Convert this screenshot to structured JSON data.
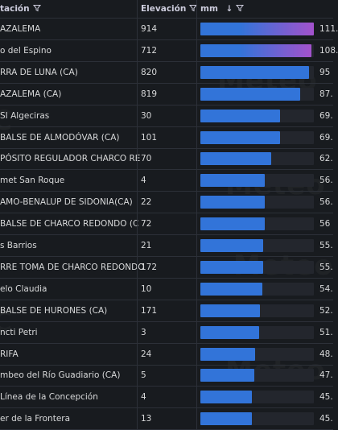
{
  "columns": {
    "station": "tación",
    "elevation": "Elevación",
    "mm": "mm",
    "sort": "↓"
  },
  "bar_scale_max": 111,
  "colors": {
    "bar": "#3274d9",
    "gradient_end": "#a352cc"
  },
  "rows": [
    {
      "station": "AZALEMA",
      "elevation": "914",
      "value": "111.",
      "fraction": 1.0
    },
    {
      "station": "o del Espino",
      "elevation": "712",
      "value": "108.",
      "fraction": 0.98
    },
    {
      "station": "RRA DE LUNA (CA)",
      "elevation": "820",
      "value": "95",
      "fraction": 0.955
    },
    {
      "station": "AZALEMA (CA)",
      "elevation": "819",
      "value": "87.",
      "fraction": 0.88
    },
    {
      "station": "SI Algeciras",
      "elevation": "30",
      "value": "69.",
      "fraction": 0.7
    },
    {
      "station": "BALSE DE ALMODÓVAR (CA)",
      "elevation": "101",
      "value": "69.",
      "fraction": 0.7
    },
    {
      "station": "PÓSITO REGULADOR CHARCO RE",
      "elevation": "70",
      "value": "62.",
      "fraction": 0.625
    },
    {
      "station": "met San Roque",
      "elevation": "4",
      "value": "56.",
      "fraction": 0.565
    },
    {
      "station": "AMO-BENALUP DE SIDONIA(CA)",
      "elevation": "22",
      "value": "56.",
      "fraction": 0.565
    },
    {
      "station": "BALSE DE CHARCO REDONDO (C",
      "elevation": "72",
      "value": "56",
      "fraction": 0.565
    },
    {
      "station": "s Barrios",
      "elevation": "21",
      "value": "55.",
      "fraction": 0.555
    },
    {
      "station": "RRE TOMA DE CHARCO REDONDO",
      "elevation": "172",
      "value": "55.",
      "fraction": 0.555
    },
    {
      "station": "elo Claudia",
      "elevation": "10",
      "value": "54.",
      "fraction": 0.545
    },
    {
      "station": "BALSE DE HURONES (CA)",
      "elevation": "171",
      "value": "52.",
      "fraction": 0.525
    },
    {
      "station": "ncti Petri",
      "elevation": "3",
      "value": "51.",
      "fraction": 0.515
    },
    {
      "station": "RIFA",
      "elevation": "24",
      "value": "48.",
      "fraction": 0.485
    },
    {
      "station": "mbeo del Río Guadiario (CA)",
      "elevation": "5",
      "value": "47.",
      "fraction": 0.475
    },
    {
      "station": "Línea de la Concepción",
      "elevation": "4",
      "value": "45.",
      "fraction": 0.455
    },
    {
      "station": "er de la Frontera",
      "elevation": "13",
      "value": "45.",
      "fraction": 0.455
    }
  ]
}
